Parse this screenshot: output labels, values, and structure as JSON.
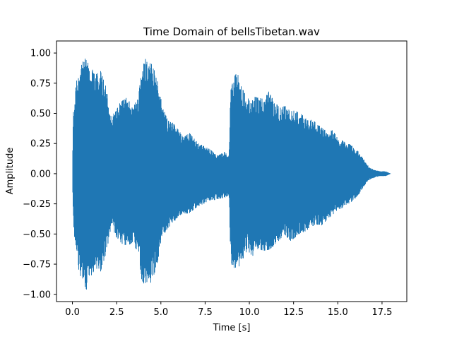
{
  "chart_data": {
    "type": "line",
    "title": "Time Domain of bellsTibetan.wav",
    "xlabel": "Time [s]",
    "ylabel": "Amplitude",
    "xlim": [
      -0.9,
      18.9
    ],
    "ylim": [
      -1.06,
      1.1
    ],
    "xticks": [
      0.0,
      2.5,
      5.0,
      7.5,
      10.0,
      12.5,
      15.0,
      17.5
    ],
    "xtick_labels": [
      "0.0",
      "2.5",
      "5.0",
      "7.5",
      "10.0",
      "12.5",
      "15.0",
      "17.5"
    ],
    "yticks": [
      -1.0,
      -0.75,
      -0.5,
      -0.25,
      0.0,
      0.25,
      0.5,
      0.75,
      1.0
    ],
    "ytick_labels": [
      "−1.00",
      "−0.75",
      "−0.50",
      "−0.25",
      "0.00",
      "0.25",
      "0.50",
      "0.75",
      "1.00"
    ],
    "grid": false,
    "series": [
      {
        "color": "#1f77b4",
        "envelope": {
          "t": [
            0.0,
            0.05,
            0.2,
            0.4,
            0.6,
            0.8,
            1.0,
            1.3,
            1.6,
            1.9,
            2.2,
            2.5,
            2.8,
            3.1,
            3.4,
            3.7,
            3.9,
            4.1,
            4.3,
            4.5,
            4.8,
            5.1,
            5.4,
            5.7,
            6.0,
            6.3,
            6.6,
            7.0,
            7.4,
            7.8,
            8.2,
            8.6,
            8.85,
            8.95,
            9.05,
            9.3,
            9.6,
            9.9,
            10.2,
            10.5,
            10.8,
            11.1,
            11.4,
            11.7,
            12.0,
            12.3,
            12.6,
            12.9,
            13.2,
            13.5,
            13.8,
            14.1,
            14.4,
            14.7,
            15.0,
            15.3,
            15.6,
            15.9,
            16.2,
            16.5,
            16.8,
            17.1,
            17.4,
            17.7,
            18.0
          ],
          "upper": [
            0.0,
            0.52,
            0.75,
            0.86,
            0.93,
            0.97,
            0.9,
            0.82,
            0.85,
            0.72,
            0.48,
            0.53,
            0.62,
            0.63,
            0.55,
            0.62,
            0.82,
            0.96,
            0.9,
            0.93,
            0.78,
            0.55,
            0.44,
            0.42,
            0.36,
            0.3,
            0.34,
            0.27,
            0.23,
            0.2,
            0.15,
            0.18,
            0.15,
            0.7,
            0.75,
            0.86,
            0.71,
            0.62,
            0.64,
            0.63,
            0.62,
            0.68,
            0.6,
            0.55,
            0.56,
            0.55,
            0.52,
            0.5,
            0.46,
            0.45,
            0.42,
            0.38,
            0.35,
            0.36,
            0.3,
            0.27,
            0.25,
            0.22,
            0.18,
            0.11,
            0.05,
            0.03,
            0.02,
            0.02,
            0.0
          ],
          "lower": [
            0.0,
            -0.4,
            -0.7,
            -0.82,
            -0.92,
            -0.96,
            -0.87,
            -0.78,
            -0.81,
            -0.66,
            -0.45,
            -0.53,
            -0.58,
            -0.6,
            -0.57,
            -0.65,
            -0.87,
            -0.93,
            -0.91,
            -0.9,
            -0.74,
            -0.52,
            -0.45,
            -0.41,
            -0.35,
            -0.33,
            -0.33,
            -0.28,
            -0.25,
            -0.23,
            -0.21,
            -0.2,
            -0.18,
            -0.72,
            -0.77,
            -0.8,
            -0.72,
            -0.63,
            -0.7,
            -0.62,
            -0.64,
            -0.63,
            -0.6,
            -0.55,
            -0.5,
            -0.56,
            -0.53,
            -0.49,
            -0.48,
            -0.44,
            -0.42,
            -0.43,
            -0.38,
            -0.34,
            -0.31,
            -0.28,
            -0.25,
            -0.22,
            -0.17,
            -0.1,
            -0.05,
            -0.03,
            -0.02,
            -0.02,
            0.0
          ]
        }
      }
    ]
  }
}
